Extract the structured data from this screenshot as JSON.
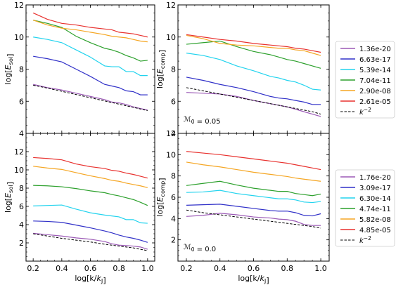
{
  "chart_data": [
    {
      "id": "p1",
      "type": "line",
      "xlabel": "",
      "ylabel": "log[E_sol]",
      "xlim": [
        0.15,
        1.05
      ],
      "ylim": [
        4,
        12
      ],
      "yticks": [
        "4",
        "6",
        "8",
        "10",
        "12"
      ],
      "xticks": [],
      "annotation": "",
      "x": [
        0.2,
        0.3,
        0.4,
        0.5,
        0.6,
        0.7,
        0.75,
        0.8,
        0.85,
        0.9,
        0.95,
        1.0
      ],
      "series": [
        {
          "color": "#9b59b6",
          "style": "solid",
          "values": [
            7.05,
            6.85,
            6.7,
            6.5,
            6.3,
            6.1,
            5.95,
            5.9,
            5.8,
            5.65,
            5.55,
            5.45
          ]
        },
        {
          "color": "#3030c8",
          "style": "solid",
          "values": [
            8.8,
            8.65,
            8.45,
            8.0,
            7.55,
            7.05,
            6.95,
            6.85,
            6.65,
            6.6,
            6.4,
            6.4
          ]
        },
        {
          "color": "#22d3ee",
          "style": "solid",
          "values": [
            10.0,
            9.85,
            9.65,
            9.2,
            8.75,
            8.2,
            8.15,
            8.15,
            7.85,
            7.85,
            7.6,
            7.6
          ]
        },
        {
          "color": "#2ca02c",
          "style": "solid",
          "values": [
            11.05,
            10.85,
            10.6,
            10.05,
            9.65,
            9.3,
            9.2,
            9.05,
            8.85,
            8.7,
            8.5,
            8.55
          ]
        },
        {
          "color": "#f5a623",
          "style": "solid",
          "values": [
            11.05,
            10.75,
            10.55,
            10.45,
            10.3,
            10.15,
            10.05,
            10.0,
            9.95,
            9.85,
            9.75,
            9.7
          ]
        },
        {
          "color": "#e8312e",
          "style": "solid",
          "values": [
            11.5,
            11.1,
            10.85,
            10.75,
            10.6,
            10.5,
            10.45,
            10.3,
            10.25,
            10.2,
            10.1,
            10.0
          ]
        },
        {
          "color": "#000000",
          "style": "dashed",
          "values": [
            7.0,
            6.82,
            6.62,
            6.42,
            6.22,
            6.02,
            5.92,
            5.82,
            5.72,
            5.62,
            5.52,
            5.42
          ]
        }
      ]
    },
    {
      "id": "p2",
      "type": "line",
      "xlabel": "",
      "ylabel": "log[E_comp]",
      "xlim": [
        0.15,
        1.05
      ],
      "ylim": [
        4,
        12
      ],
      "yticks": [
        "4",
        "6",
        "8",
        "10",
        "12"
      ],
      "xticks": [],
      "annotation": "M0 = 0.05",
      "x": [
        0.2,
        0.3,
        0.4,
        0.5,
        0.6,
        0.7,
        0.75,
        0.8,
        0.85,
        0.9,
        0.95,
        1.0
      ],
      "series": [
        {
          "color": "#9b59b6",
          "style": "solid",
          "values": [
            6.55,
            6.5,
            6.45,
            6.3,
            6.05,
            5.85,
            5.75,
            5.65,
            5.5,
            5.35,
            5.2,
            5.05
          ]
        },
        {
          "color": "#3030c8",
          "style": "solid",
          "values": [
            7.5,
            7.3,
            7.05,
            6.85,
            6.6,
            6.3,
            6.2,
            6.15,
            6.05,
            5.95,
            5.8,
            5.8
          ]
        },
        {
          "color": "#22d3ee",
          "style": "solid",
          "values": [
            9.0,
            8.85,
            8.6,
            8.2,
            7.9,
            7.55,
            7.45,
            7.3,
            7.2,
            7.0,
            6.75,
            6.7
          ]
        },
        {
          "color": "#2ca02c",
          "style": "solid",
          "values": [
            9.55,
            9.65,
            9.75,
            9.4,
            9.1,
            8.9,
            8.75,
            8.6,
            8.5,
            8.35,
            8.2,
            8.05
          ]
        },
        {
          "color": "#f5a623",
          "style": "solid",
          "values": [
            10.1,
            9.9,
            9.6,
            9.5,
            9.45,
            9.35,
            9.3,
            9.3,
            9.2,
            9.15,
            9.0,
            8.85
          ]
        },
        {
          "color": "#e8312e",
          "style": "solid",
          "values": [
            10.15,
            10.0,
            9.85,
            9.75,
            9.6,
            9.5,
            9.45,
            9.4,
            9.3,
            9.25,
            9.15,
            9.05
          ]
        },
        {
          "color": "#000000",
          "style": "dashed",
          "values": [
            6.85,
            6.65,
            6.45,
            6.25,
            6.05,
            5.85,
            5.75,
            5.65,
            5.55,
            5.45,
            5.35,
            5.2
          ]
        }
      ]
    },
    {
      "id": "p3",
      "type": "line",
      "xlabel": "log[k/k_J]",
      "ylabel": "log[E_sol]",
      "xlim": [
        0.15,
        1.05
      ],
      "ylim": [
        0,
        14
      ],
      "yticks": [
        "2",
        "4",
        "6",
        "8",
        "10",
        "12"
      ],
      "xticks": [
        "0.2",
        "0.4",
        "0.6",
        "0.8",
        "1.0"
      ],
      "annotation": "",
      "x": [
        0.2,
        0.3,
        0.4,
        0.5,
        0.6,
        0.7,
        0.75,
        0.8,
        0.85,
        0.9,
        0.95,
        1.0
      ],
      "series": [
        {
          "color": "#9b59b6",
          "style": "solid",
          "values": [
            3.05,
            2.9,
            2.75,
            2.55,
            2.4,
            2.15,
            1.9,
            1.75,
            1.7,
            1.65,
            1.55,
            1.3
          ]
        },
        {
          "color": "#3030c8",
          "style": "solid",
          "values": [
            4.4,
            4.35,
            4.25,
            3.95,
            3.65,
            3.3,
            3.1,
            2.85,
            2.65,
            2.5,
            2.3,
            2.05
          ]
        },
        {
          "color": "#22d3ee",
          "style": "solid",
          "values": [
            6.05,
            6.1,
            6.15,
            5.7,
            5.3,
            5.05,
            4.95,
            4.85,
            4.55,
            4.55,
            4.2,
            4.15
          ]
        },
        {
          "color": "#2ca02c",
          "style": "solid",
          "values": [
            8.3,
            8.25,
            8.15,
            7.95,
            7.7,
            7.5,
            7.3,
            7.15,
            6.95,
            6.75,
            6.45,
            6.1
          ]
        },
        {
          "color": "#f5a623",
          "style": "solid",
          "values": [
            10.4,
            10.2,
            10.05,
            9.7,
            9.35,
            9.05,
            8.85,
            8.75,
            8.55,
            8.4,
            8.25,
            8.05
          ]
        },
        {
          "color": "#e8312e",
          "style": "solid",
          "values": [
            11.35,
            11.25,
            11.1,
            10.65,
            10.35,
            10.15,
            9.95,
            9.85,
            9.65,
            9.5,
            9.3,
            9.1
          ]
        },
        {
          "color": "#000000",
          "style": "dashed",
          "values": [
            3.0,
            2.75,
            2.5,
            2.3,
            2.1,
            1.85,
            1.75,
            1.65,
            1.55,
            1.45,
            1.3,
            1.15
          ]
        }
      ]
    },
    {
      "id": "p4",
      "type": "line",
      "xlabel": "log[k/k_J]",
      "ylabel": "log[E_comp]",
      "xlim": [
        0.15,
        1.05
      ],
      "ylim": [
        0,
        12
      ],
      "yticks": [
        "2",
        "4",
        "6",
        "8",
        "10",
        "12"
      ],
      "xticks": [
        "0.2",
        "0.4",
        "0.6",
        "0.8",
        "1.0"
      ],
      "annotation": "M0 = 0.0",
      "x": [
        0.2,
        0.3,
        0.4,
        0.5,
        0.6,
        0.7,
        0.75,
        0.8,
        0.85,
        0.9,
        0.95,
        1.0
      ],
      "series": [
        {
          "color": "#9b59b6",
          "style": "solid",
          "values": [
            4.2,
            4.3,
            4.5,
            4.35,
            4.15,
            4.05,
            3.95,
            3.9,
            3.75,
            3.45,
            3.35,
            3.35
          ]
        },
        {
          "color": "#3030c8",
          "style": "solid",
          "values": [
            5.25,
            5.3,
            5.35,
            5.15,
            4.95,
            4.75,
            4.7,
            4.7,
            4.55,
            4.3,
            4.25,
            4.45
          ]
        },
        {
          "color": "#22d3ee",
          "style": "solid",
          "values": [
            6.45,
            6.5,
            6.65,
            6.35,
            6.15,
            5.95,
            5.85,
            5.85,
            5.75,
            5.55,
            5.5,
            5.6
          ]
        },
        {
          "color": "#2ca02c",
          "style": "solid",
          "values": [
            7.1,
            7.3,
            7.5,
            7.15,
            6.85,
            6.65,
            6.55,
            6.55,
            6.35,
            6.25,
            6.15,
            6.3
          ]
        },
        {
          "color": "#f5a623",
          "style": "solid",
          "values": [
            9.3,
            9.05,
            8.85,
            8.6,
            8.35,
            8.15,
            8.05,
            7.95,
            7.8,
            7.7,
            7.6,
            7.5
          ]
        },
        {
          "color": "#e8312e",
          "style": "solid",
          "values": [
            10.3,
            10.15,
            10.0,
            9.8,
            9.6,
            9.4,
            9.3,
            9.2,
            9.05,
            8.9,
            8.75,
            8.6
          ]
        },
        {
          "color": "#000000",
          "style": "dashed",
          "values": [
            4.8,
            4.55,
            4.35,
            4.15,
            3.95,
            3.75,
            3.65,
            3.55,
            3.45,
            3.35,
            3.25,
            3.1
          ]
        }
      ]
    }
  ],
  "legends": [
    {
      "entries": [
        {
          "label": "1.36e-20",
          "color": "#9b59b6",
          "style": "solid"
        },
        {
          "label": "6.63e-17",
          "color": "#3030c8",
          "style": "solid"
        },
        {
          "label": "5.39e-14",
          "color": "#22d3ee",
          "style": "solid"
        },
        {
          "label": "7.04e-11",
          "color": "#2ca02c",
          "style": "solid"
        },
        {
          "label": "2.90e-08",
          "color": "#f5a623",
          "style": "solid"
        },
        {
          "label": "2.61e-05",
          "color": "#e8312e",
          "style": "solid"
        },
        {
          "label": "k^-2",
          "color": "#000000",
          "style": "dashed"
        }
      ]
    },
    {
      "entries": [
        {
          "label": "1.76e-20",
          "color": "#9b59b6",
          "style": "solid"
        },
        {
          "label": "3.09e-17",
          "color": "#3030c8",
          "style": "solid"
        },
        {
          "label": "6.30e-14",
          "color": "#22d3ee",
          "style": "solid"
        },
        {
          "label": "4.74e-11",
          "color": "#2ca02c",
          "style": "solid"
        },
        {
          "label": "5.82e-08",
          "color": "#f5a623",
          "style": "solid"
        },
        {
          "label": "4.85e-05",
          "color": "#e8312e",
          "style": "solid"
        },
        {
          "label": "k^-2",
          "color": "#000000",
          "style": "dashed"
        }
      ]
    }
  ]
}
